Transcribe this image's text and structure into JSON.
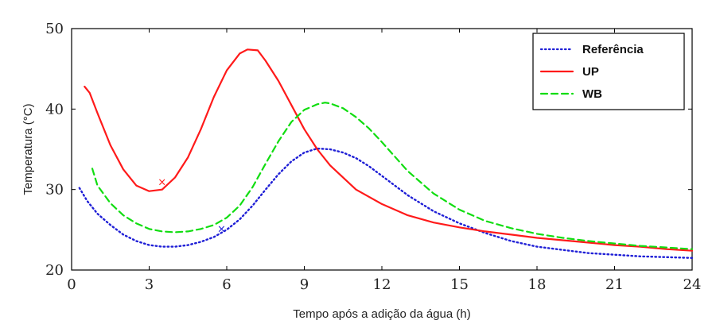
{
  "chart_data": {
    "type": "line",
    "xlabel": "Tempo após a adição da água (h)",
    "ylabel": "Temperatura (°C)",
    "xlim": [
      0,
      24
    ],
    "ylim": [
      20,
      50
    ],
    "xticks": [
      0,
      3,
      6,
      9,
      12,
      15,
      18,
      21,
      24
    ],
    "yticks": [
      20,
      30,
      40,
      50
    ],
    "grid": false,
    "legend_position": "top-right",
    "series": [
      {
        "name": "Referência",
        "color": "#1f1fd6",
        "style": "dotted",
        "x": [
          0.3,
          0.6,
          1,
          1.5,
          2,
          2.5,
          3,
          3.5,
          4,
          4.5,
          5,
          5.5,
          6,
          6.5,
          7,
          7.5,
          8,
          8.5,
          9,
          9.5,
          10,
          10.5,
          11,
          11.5,
          12,
          13,
          14,
          15,
          16,
          17,
          18,
          19,
          20,
          21,
          22,
          23,
          24
        ],
        "y": [
          30.2,
          28.6,
          27.0,
          25.6,
          24.4,
          23.6,
          23.1,
          22.9,
          22.9,
          23.1,
          23.5,
          24.1,
          25.0,
          26.3,
          28.0,
          30.0,
          31.9,
          33.5,
          34.6,
          35.1,
          35.0,
          34.6,
          33.9,
          32.9,
          31.7,
          29.3,
          27.3,
          25.8,
          24.6,
          23.6,
          22.9,
          22.5,
          22.1,
          21.9,
          21.7,
          21.6,
          21.5
        ]
      },
      {
        "name": "UP",
        "color": "#ff1a1a",
        "style": "solid",
        "x": [
          0.5,
          0.7,
          1,
          1.5,
          2,
          2.5,
          3,
          3.5,
          4,
          4.5,
          5,
          5.5,
          6,
          6.5,
          6.8,
          7.2,
          7.5,
          8,
          8.5,
          9,
          9.5,
          10,
          11,
          12,
          13,
          14,
          15,
          16,
          17,
          18,
          19,
          20,
          21,
          22,
          23,
          24
        ],
        "y": [
          42.8,
          42.0,
          39.5,
          35.5,
          32.5,
          30.5,
          29.8,
          30.0,
          31.5,
          34.0,
          37.5,
          41.5,
          44.8,
          46.9,
          47.4,
          47.3,
          46.0,
          43.5,
          40.5,
          37.5,
          35.0,
          33.0,
          30.0,
          28.2,
          26.8,
          25.9,
          25.3,
          24.8,
          24.4,
          24.0,
          23.7,
          23.4,
          23.1,
          22.9,
          22.6,
          22.4
        ]
      },
      {
        "name": "WB",
        "color": "#11dd11",
        "style": "dashed",
        "x": [
          0.8,
          1,
          1.5,
          2,
          2.5,
          3,
          3.5,
          4,
          4.5,
          5,
          5.5,
          6,
          6.5,
          7,
          7.5,
          8,
          8.5,
          9,
          9.5,
          9.8,
          10,
          10.5,
          11,
          11.5,
          12,
          13,
          14,
          15,
          16,
          17,
          18,
          19,
          20,
          21,
          22,
          23,
          24
        ],
        "y": [
          32.6,
          30.5,
          28.3,
          26.8,
          25.8,
          25.1,
          24.8,
          24.7,
          24.8,
          25.1,
          25.6,
          26.5,
          28.0,
          30.3,
          33.2,
          36.0,
          38.4,
          39.9,
          40.6,
          40.8,
          40.7,
          40.1,
          39.0,
          37.6,
          35.9,
          32.3,
          29.5,
          27.5,
          26.1,
          25.2,
          24.5,
          24.0,
          23.6,
          23.3,
          23.0,
          22.8,
          22.6
        ]
      }
    ],
    "markers": [
      {
        "x": 3.5,
        "y": 31.0,
        "symbol": "×",
        "color": "#ff1a1a"
      },
      {
        "x": 5.8,
        "y": 25.2,
        "symbol": "×",
        "color": "#1f1fd6"
      }
    ]
  }
}
